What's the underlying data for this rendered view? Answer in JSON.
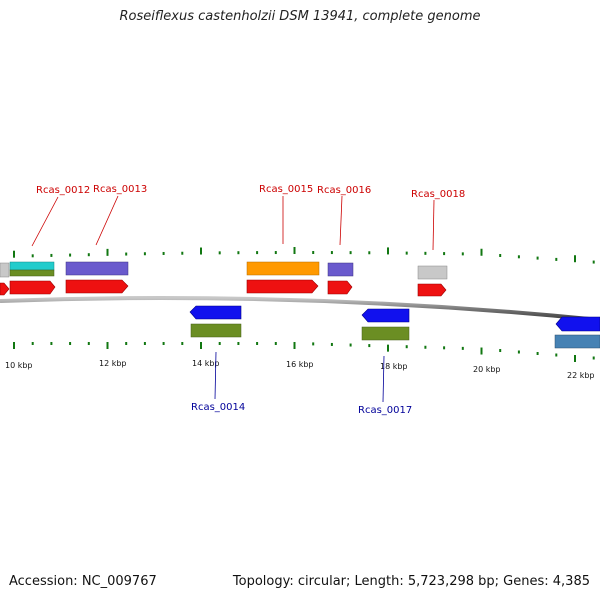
{
  "title": "Roseiflexus castenholzii DSM 13941, complete genome",
  "footer": {
    "accession": "Accession: NC_009767",
    "stats": "Topology: circular; Length: 5,723,298 bp; Genes: 4,385"
  },
  "colors": {
    "forward_label": "#cc0000",
    "reverse_label": "#000099",
    "tick": "#117711",
    "backbone": "#888888"
  },
  "scale_labels": [
    "10 kbp",
    "12 kbp",
    "14 kbp",
    "16 kbp",
    "18 kbp",
    "20 kbp",
    "22 kbp"
  ],
  "gene_labels": [
    {
      "text": "Rcas_0012",
      "strand": "forward"
    },
    {
      "text": "Rcas_0013",
      "strand": "forward"
    },
    {
      "text": "Rcas_0014",
      "strand": "reverse"
    },
    {
      "text": "Rcas_0015",
      "strand": "forward"
    },
    {
      "text": "Rcas_0016",
      "strand": "forward"
    },
    {
      "text": "Rcas_0017",
      "strand": "reverse"
    },
    {
      "text": "Rcas_0018",
      "strand": "forward"
    }
  ]
}
